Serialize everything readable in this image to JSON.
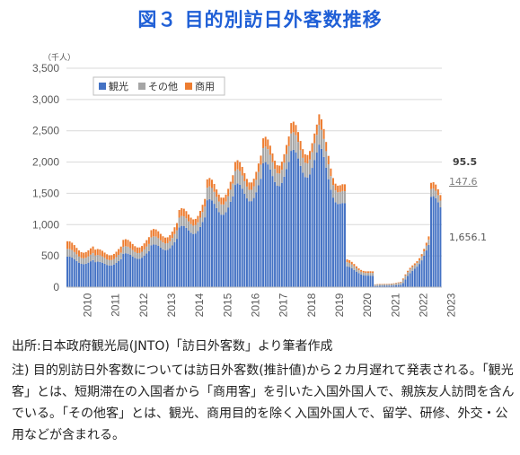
{
  "title": "図３ 目的別訪日外客数推移",
  "source": "出所:日本政府観光局(JNTO)「訪日外客数」より筆者作成",
  "note": "注) 目的別訪日外客数については訪日外客数(推計値)から２カ月遅れて発表される。「観光客」とは、短期滞在の入国者から「商用客」を引いた入国外国人で、親族友人訪問を含んでいる。「その他客」とは、観光、商用目的を除く入国外国人で、留学、研修、外交・公用などが含まれる。",
  "colors": {
    "tourism": "#4472c4",
    "other": "#a5a5a5",
    "business": "#ed7d31"
  },
  "chart_data": {
    "type": "bar",
    "stacked": true,
    "unit_label": "（千人）",
    "ylim": [
      0,
      3500
    ],
    "yticks": [
      "0",
      "500",
      "1,000",
      "1,500",
      "2,000",
      "2,500",
      "3,000",
      "3,500"
    ],
    "x_years": [
      "2010",
      "2011",
      "2012",
      "2013",
      "2014",
      "2015",
      "2016",
      "2017",
      "2018",
      "2019",
      "2020",
      "2021",
      "2022",
      "2023"
    ],
    "legend": [
      "観光",
      "その他",
      "商用"
    ],
    "legend_position": "top-left",
    "grid": true,
    "series": [
      {
        "name": "観光",
        "yearly_avg": [
          440,
          360,
          480,
          600,
          860,
          1250,
          1470,
          1780,
          1960,
          2050,
          300,
          15,
          60,
          1300
        ]
      },
      {
        "name": "その他",
        "yearly_avg": [
          110,
          95,
          100,
          115,
          140,
          180,
          200,
          220,
          250,
          280,
          60,
          20,
          50,
          110
        ]
      },
      {
        "name": "商用",
        "yearly_avg": [
          110,
          85,
          100,
          105,
          110,
          120,
          130,
          140,
          150,
          155,
          40,
          5,
          15,
          90
        ]
      }
    ],
    "annotations": {
      "business_last": "95.5",
      "other_last": "147.6",
      "tourism_last": "1,656.1"
    }
  }
}
